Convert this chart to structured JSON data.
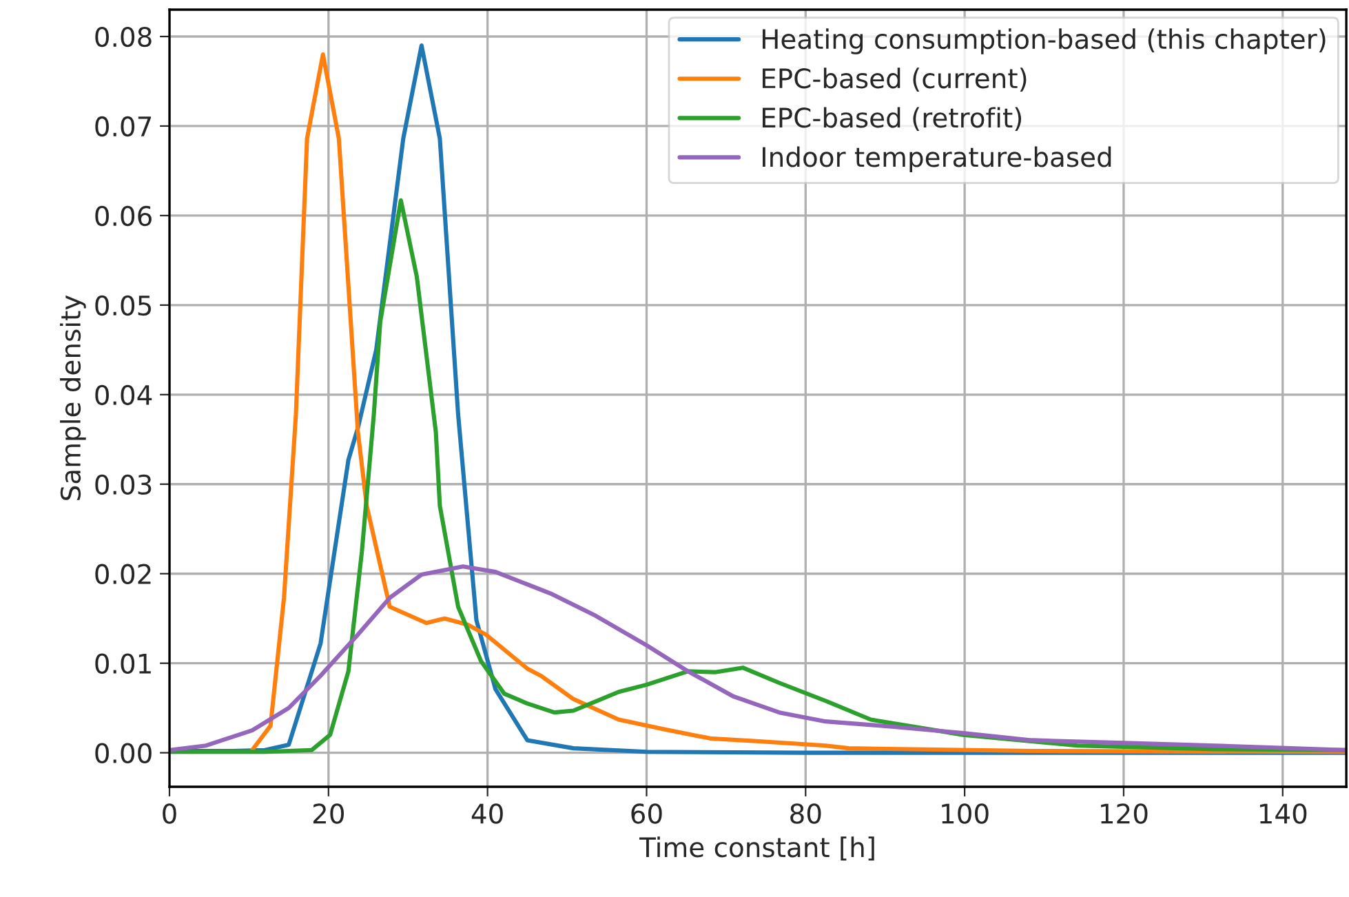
{
  "chart_data": {
    "type": "line",
    "xlabel": "Time constant [h]",
    "ylabel": "Sample density",
    "xlim": [
      0,
      148
    ],
    "ylim": [
      -0.0038,
      0.083
    ],
    "xticks": [
      0,
      20,
      40,
      60,
      80,
      100,
      120,
      140
    ],
    "yticks": [
      {
        "value": 0,
        "label": "0.00"
      },
      {
        "value": 0.01,
        "label": "0.01"
      },
      {
        "value": 0.02,
        "label": "0.02"
      },
      {
        "value": 0.03,
        "label": "0.03"
      },
      {
        "value": 0.04,
        "label": "0.04"
      },
      {
        "value": 0.05,
        "label": "0.05"
      },
      {
        "value": 0.06,
        "label": "0.06"
      },
      {
        "value": 0.07,
        "label": "0.07"
      },
      {
        "value": 0.08,
        "label": "0.08"
      }
    ],
    "grid": true,
    "legend": "top right",
    "line_style": "solid",
    "marker": "none",
    "series": [
      {
        "name": "Heating consumption-based (this chapter)",
        "color": "#1f77b4",
        "x": [
          0,
          8,
          12,
          15,
          19,
          22.5,
          23.7,
          26,
          29.4,
          31.7,
          34,
          36.3,
          38.6,
          41,
          45,
          50.8,
          60,
          80,
          100,
          120,
          148
        ],
        "values": [
          0.0002,
          0.0002,
          0.0003,
          0.0009,
          0.0122,
          0.0327,
          0.0363,
          0.045,
          0.0686,
          0.079,
          0.0686,
          0.0378,
          0.0148,
          0.0071,
          0.0014,
          0.0005,
          0.0001,
          0,
          0,
          0,
          0
        ]
      },
      {
        "name": "EPC-based (current)",
        "color": "#ff7f0e",
        "x": [
          10.4,
          12.7,
          14.4,
          15.9,
          17.3,
          19.3,
          21.3,
          23.7,
          24.8,
          27.7,
          32.3,
          34.6,
          37.5,
          39.8,
          45,
          46.7,
          50.8,
          56.5,
          62.3,
          68,
          73.8,
          82.5,
          85.4,
          108.4,
          148
        ],
        "values": [
          0.0003,
          0.003,
          0.0173,
          0.0378,
          0.0686,
          0.078,
          0.0686,
          0.0358,
          0.0276,
          0.0163,
          0.0145,
          0.015,
          0.0143,
          0.0132,
          0.0094,
          0.0086,
          0.006,
          0.0037,
          0.0026,
          0.0016,
          0.0013,
          0.0008,
          0.0005,
          0.0002,
          0.0001
        ]
      },
      {
        "name": "EPC-based (retrofit)",
        "color": "#2ca02c",
        "x": [
          0,
          12,
          17.9,
          20.2,
          22.5,
          24.2,
          25.7,
          26.5,
          29.1,
          31.1,
          33.5,
          34,
          36.3,
          39.2,
          42.1,
          45,
          48.4,
          50.8,
          56.5,
          60,
          65.2,
          68.6,
          72.1,
          76.7,
          82.5,
          88.2,
          99.8,
          114.2,
          131.5,
          148
        ],
        "values": [
          0.0001,
          0.0001,
          0.0003,
          0.002,
          0.0091,
          0.0225,
          0.0378,
          0.0481,
          0.0617,
          0.0532,
          0.0358,
          0.0276,
          0.0163,
          0.0102,
          0.0066,
          0.0055,
          0.0045,
          0.0047,
          0.0068,
          0.0076,
          0.0091,
          0.009,
          0.0095,
          0.0078,
          0.0058,
          0.0037,
          0.002,
          0.0008,
          0.0004,
          0.0003
        ]
      },
      {
        "name": "Indoor temperature-based",
        "color": "#9467bd",
        "x": [
          0,
          4.6,
          10.4,
          15,
          19,
          23.7,
          27.7,
          31.7,
          36.9,
          41,
          47.9,
          53.6,
          60,
          65.2,
          70.9,
          76.7,
          82.5,
          91.1,
          99.8,
          108.4,
          120,
          131.5,
          148
        ],
        "values": [
          0.0003,
          0.0008,
          0.0025,
          0.005,
          0.0086,
          0.0132,
          0.0173,
          0.0199,
          0.0208,
          0.0202,
          0.0178,
          0.0153,
          0.012,
          0.0091,
          0.0063,
          0.0045,
          0.0035,
          0.0029,
          0.0022,
          0.0014,
          0.0011,
          0.0008,
          0.0003
        ]
      }
    ]
  }
}
